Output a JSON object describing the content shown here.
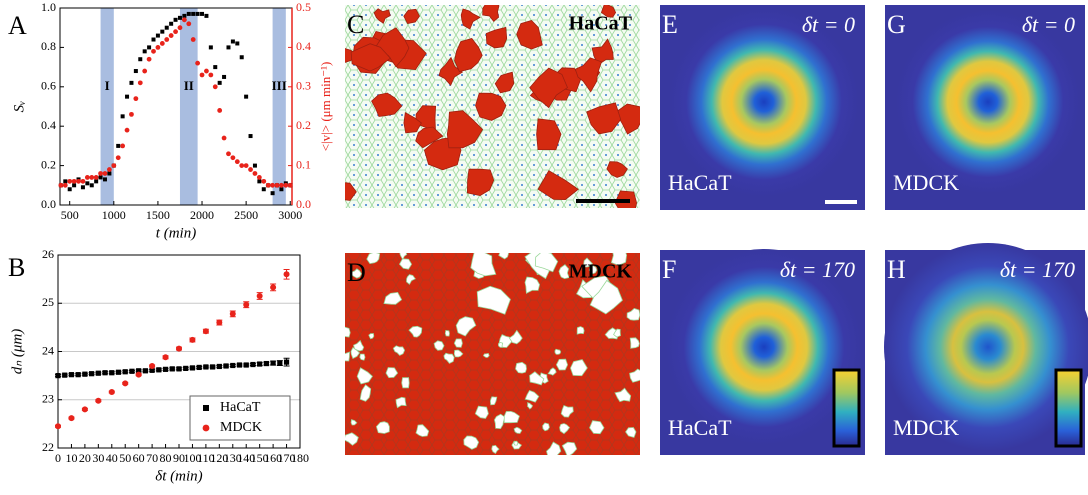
{
  "chart_data": [
    {
      "type": "scatter",
      "panel": "A",
      "xlabel": "t (min)",
      "ylabel": "Sᵥ",
      "y2label": "<|v|> (μm min⁻¹)",
      "xlim": [
        390,
        3020
      ],
      "xticks": [
        500,
        1000,
        1500,
        2000,
        2500,
        3000
      ],
      "ylim": [
        0,
        1
      ],
      "yticks": [
        {
          "value": 0,
          "label": "0.0"
        },
        0.2,
        0.4,
        0.6,
        0.8,
        {
          "value": 1,
          "label": "1.0"
        }
      ],
      "y2lim": [
        0,
        0.5
      ],
      "y2ticks": [
        {
          "value": 0,
          "label": "0.0"
        },
        0.1,
        0.2,
        0.3,
        0.4,
        0.5
      ],
      "y2color": "#e8231b",
      "bands": [
        {
          "label": "I",
          "x": [
            850,
            1000
          ]
        },
        {
          "label": "II",
          "x": [
            1750,
            1950
          ]
        },
        {
          "label": "III",
          "x": [
            2800,
            2950
          ]
        }
      ],
      "series": [
        {
          "name": "Sᵥ",
          "color": "#000000",
          "marker": "square",
          "x": [
            400,
            450,
            500,
            550,
            600,
            650,
            700,
            750,
            800,
            850,
            900,
            950,
            1000,
            1050,
            1100,
            1150,
            1200,
            1250,
            1300,
            1350,
            1400,
            1450,
            1500,
            1550,
            1600,
            1650,
            1700,
            1750,
            1800,
            1850,
            1900,
            1950,
            2000,
            2050,
            2100,
            2150,
            2200,
            2250,
            2300,
            2350,
            2400,
            2450,
            2500,
            2550,
            2600,
            2650,
            2700,
            2750,
            2800,
            2850,
            2900,
            2950,
            3000
          ],
          "values": [
            0.1,
            0.12,
            0.08,
            0.1,
            0.13,
            0.09,
            0.11,
            0.1,
            0.12,
            0.14,
            0.13,
            0.16,
            0.2,
            0.3,
            0.45,
            0.55,
            0.62,
            0.68,
            0.74,
            0.78,
            0.8,
            0.84,
            0.86,
            0.88,
            0.9,
            0.92,
            0.94,
            0.95,
            0.96,
            0.97,
            0.97,
            0.97,
            0.97,
            0.96,
            0.8,
            0.7,
            0.62,
            0.65,
            0.8,
            0.83,
            0.82,
            0.75,
            0.55,
            0.35,
            0.2,
            0.12,
            0.08,
            0.1,
            0.06,
            0.1,
            0.08,
            0.11,
            0.1
          ]
        },
        {
          "name": "<|v|>",
          "color": "#e8231b",
          "marker": "circle",
          "axis": "y2",
          "x": [
            400,
            450,
            500,
            550,
            600,
            650,
            700,
            750,
            800,
            850,
            900,
            950,
            1000,
            1050,
            1100,
            1150,
            1200,
            1250,
            1300,
            1350,
            1400,
            1450,
            1500,
            1550,
            1600,
            1650,
            1700,
            1750,
            1800,
            1850,
            1900,
            1950,
            2000,
            2050,
            2100,
            2150,
            2200,
            2250,
            2300,
            2350,
            2400,
            2450,
            2500,
            2550,
            2600,
            2650,
            2700,
            2750,
            2800,
            2850,
            2900,
            2950,
            3000
          ],
          "values": [
            0.05,
            0.05,
            0.06,
            0.06,
            0.06,
            0.06,
            0.07,
            0.07,
            0.07,
            0.08,
            0.08,
            0.09,
            0.1,
            0.12,
            0.15,
            0.19,
            0.23,
            0.27,
            0.31,
            0.34,
            0.37,
            0.39,
            0.4,
            0.41,
            0.42,
            0.43,
            0.44,
            0.45,
            0.47,
            0.46,
            0.42,
            0.36,
            0.33,
            0.34,
            0.33,
            0.3,
            0.24,
            0.17,
            0.13,
            0.12,
            0.11,
            0.1,
            0.1,
            0.09,
            0.08,
            0.07,
            0.06,
            0.05,
            0.05,
            0.05,
            0.05,
            0.05,
            0.05
          ]
        }
      ]
    },
    {
      "type": "scatter",
      "panel": "B",
      "xlabel": "δt (min)",
      "ylabel": "dₙ (μm)",
      "grid": true,
      "legend": "lower right",
      "xlim": [
        0,
        180
      ],
      "xticks": [
        0,
        10,
        20,
        30,
        40,
        50,
        60,
        70,
        80,
        90,
        100,
        110,
        120,
        130,
        140,
        150,
        160,
        170,
        180
      ],
      "ylim": [
        22,
        26
      ],
      "yticks": [
        22,
        23,
        24,
        25,
        26
      ],
      "series": [
        {
          "name": "HaCaT",
          "color": "#000000",
          "marker": "square",
          "x": [
            0,
            5,
            10,
            15,
            20,
            25,
            30,
            35,
            40,
            45,
            50,
            55,
            60,
            65,
            70,
            75,
            80,
            85,
            90,
            95,
            100,
            105,
            110,
            115,
            120,
            125,
            130,
            135,
            140,
            145,
            150,
            155,
            160,
            165,
            170
          ],
          "values": [
            23.5,
            23.51,
            23.52,
            23.52,
            23.53,
            23.54,
            23.55,
            23.56,
            23.56,
            23.57,
            23.58,
            23.59,
            23.6,
            23.6,
            23.61,
            23.62,
            23.63,
            23.64,
            23.64,
            23.65,
            23.66,
            23.67,
            23.68,
            23.68,
            23.69,
            23.7,
            23.71,
            23.72,
            23.72,
            23.73,
            23.74,
            23.75,
            23.76,
            23.76,
            23.78
          ],
          "errors": [
            0.02,
            0.02,
            0.02,
            0.02,
            0.02,
            0.02,
            0.02,
            0.02,
            0.02,
            0.02,
            0.02,
            0.02,
            0.02,
            0.02,
            0.02,
            0.02,
            0.02,
            0.02,
            0.02,
            0.02,
            0.02,
            0.02,
            0.02,
            0.02,
            0.02,
            0.02,
            0.02,
            0.02,
            0.02,
            0.02,
            0.03,
            0.03,
            0.04,
            0.05,
            0.08
          ]
        },
        {
          "name": "MDCK",
          "color": "#e8231b",
          "marker": "circle",
          "x": [
            0,
            10,
            20,
            30,
            40,
            50,
            60,
            70,
            80,
            90,
            100,
            110,
            120,
            130,
            140,
            150,
            160,
            170
          ],
          "values": [
            22.45,
            22.62,
            22.8,
            22.98,
            23.16,
            23.34,
            23.52,
            23.7,
            23.88,
            24.06,
            24.24,
            24.42,
            24.6,
            24.78,
            24.97,
            25.15,
            25.33,
            25.6
          ],
          "errors": [
            0.02,
            0.02,
            0.02,
            0.02,
            0.02,
            0.02,
            0.02,
            0.02,
            0.03,
            0.03,
            0.04,
            0.04,
            0.05,
            0.06,
            0.06,
            0.07,
            0.07,
            0.1
          ]
        }
      ]
    }
  ],
  "panels": [
    {
      "letter": "C",
      "label": "HaCaT"
    },
    {
      "letter": "D",
      "label": "MDCK"
    },
    {
      "letter": "E",
      "title": "δt = 0",
      "label": "HaCaT"
    },
    {
      "letter": "G",
      "title": "δt = 0",
      "label": "MDCK"
    },
    {
      "letter": "F",
      "title": "δt = 170",
      "label": "HaCaT"
    },
    {
      "letter": "H",
      "title": "δt = 170",
      "label": "MDCK"
    }
  ]
}
